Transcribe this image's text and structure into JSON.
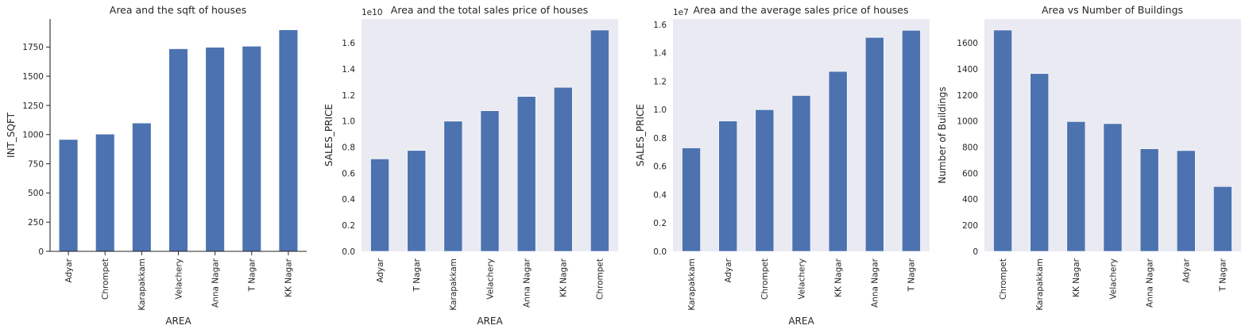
{
  "chart_data": [
    {
      "type": "bar",
      "title": "Area and the sqft of houses",
      "xlabel": "AREA",
      "ylabel": "INT_SQFT",
      "offset_text": "",
      "style": "white",
      "categories": [
        "Adyar",
        "Chrompet",
        "Karapakkam",
        "Velachery",
        "Anna Nagar",
        "T Nagar",
        "KK Nagar"
      ],
      "values": [
        956,
        1002,
        1097,
        1733,
        1746,
        1755,
        1895
      ],
      "ylim": [
        0,
        1990
      ],
      "yticks": [
        0,
        250,
        500,
        750,
        1000,
        1250,
        1500,
        1750
      ],
      "ytick_labels": [
        "0",
        "250",
        "500",
        "750",
        "1000",
        "1250",
        "1500",
        "1750"
      ],
      "grid": false,
      "bar_color": "#4c72b0"
    },
    {
      "type": "bar",
      "title": "Area and the total sales price of houses",
      "xlabel": "AREA",
      "ylabel": "SALES_PRICE",
      "offset_text": "1e10",
      "style": "darkgrid",
      "categories": [
        "Adyar",
        "T Nagar",
        "Karapakkam",
        "Velachery",
        "Anna Nagar",
        "KK Nagar",
        "Chrompet"
      ],
      "values": [
        7.1,
        7.75,
        10.0,
        10.8,
        11.9,
        12.6,
        17.0
      ],
      "ylim": [
        0,
        17.85
      ],
      "yticks": [
        0,
        2,
        4,
        6,
        8,
        10,
        12,
        14,
        16
      ],
      "ytick_labels": [
        "0.0",
        "0.2",
        "0.4",
        "0.6",
        "0.8",
        "1.0",
        "1.2",
        "1.4",
        "1.6"
      ],
      "grid": false,
      "bar_color": "#4c72b0"
    },
    {
      "type": "bar",
      "title": "Area and the average sales price of houses",
      "xlabel": "AREA",
      "ylabel": "SALES_PRICE",
      "offset_text": "1e7",
      "style": "darkgrid",
      "categories": [
        "Karapakkam",
        "Adyar",
        "Chrompet",
        "Velachery",
        "KK Nagar",
        "Anna Nagar",
        "T Nagar"
      ],
      "values": [
        0.73,
        0.92,
        1.0,
        1.1,
        1.27,
        1.51,
        1.56
      ],
      "ylim": [
        0,
        1.64
      ],
      "yticks": [
        0,
        0.2,
        0.4,
        0.6,
        0.8,
        1.0,
        1.2,
        1.4,
        1.6
      ],
      "ytick_labels": [
        "0.0",
        "0.2",
        "0.4",
        "0.6",
        "0.8",
        "1.0",
        "1.2",
        "1.4",
        "1.6"
      ],
      "grid": false,
      "bar_color": "#4c72b0"
    },
    {
      "type": "bar",
      "title": "Area vs Number of Buildings",
      "xlabel": "",
      "ylabel": "Number of Buildings",
      "offset_text": "",
      "style": "darkgrid",
      "categories": [
        "Chrompet",
        "Karapakkam",
        "KK Nagar",
        "Velachery",
        "Anna Nagar",
        "Adyar",
        "T Nagar"
      ],
      "values": [
        1700,
        1366,
        997,
        981,
        788,
        774,
        498
      ],
      "ylim": [
        0,
        1785
      ],
      "yticks": [
        0,
        200,
        400,
        600,
        800,
        1000,
        1200,
        1400,
        1600
      ],
      "ytick_labels": [
        "0",
        "200",
        "400",
        "600",
        "800",
        "1000",
        "1200",
        "1400",
        "1600"
      ],
      "grid": false,
      "bar_color": "#4c72b0"
    }
  ]
}
